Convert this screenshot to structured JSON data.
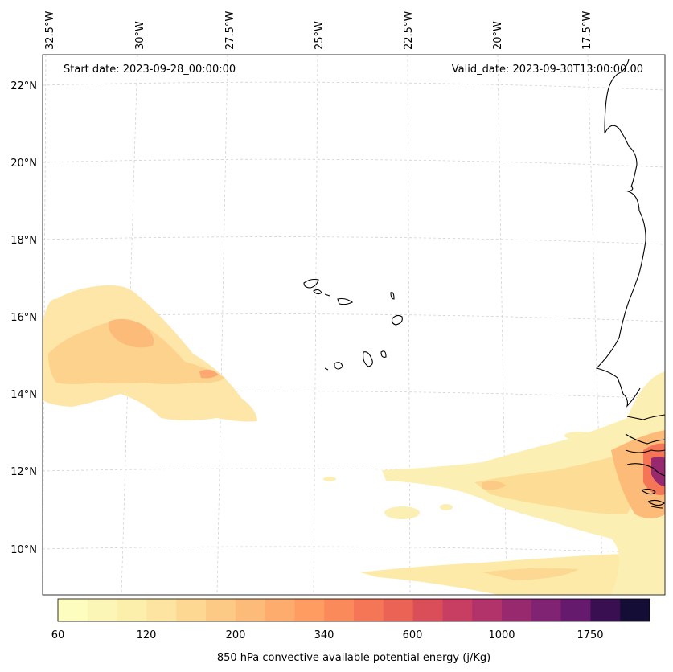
{
  "header": {
    "start_date": "Start date: 2023-09-28_00:00:00",
    "valid_date": "Valid_date: 2023-09-30T13:00:00.00"
  },
  "axes": {
    "lon_labels": [
      "32.5°W",
      "30°W",
      "27.5°W",
      "25°W",
      "22.5°W",
      "20°W",
      "17.5°W"
    ],
    "lat_labels": [
      "22°N",
      "20°N",
      "18°N",
      "16°N",
      "14°N",
      "12°N",
      "10°N"
    ],
    "grid": true
  },
  "colorbar": {
    "label": "850 hPa convective available potential energy (j/Kg)",
    "tick_labels": [
      "60",
      "120",
      "200",
      "340",
      "600",
      "1000",
      "1750"
    ],
    "colors": [
      "#fcfdbf",
      "#fcf6b6",
      "#fceeab",
      "#fde4a0",
      "#fdd893",
      "#fdca86",
      "#fdbb79",
      "#feac6d",
      "#fe9c62",
      "#fb8a5b",
      "#f57656",
      "#ea6355",
      "#da4e5a",
      "#c83e62",
      "#b1336a",
      "#98296f",
      "#802372",
      "#651a6e",
      "#3a0f52",
      "#140e36"
    ]
  },
  "colors": {
    "coastline": "#000000",
    "grid": "#cccccc"
  }
}
